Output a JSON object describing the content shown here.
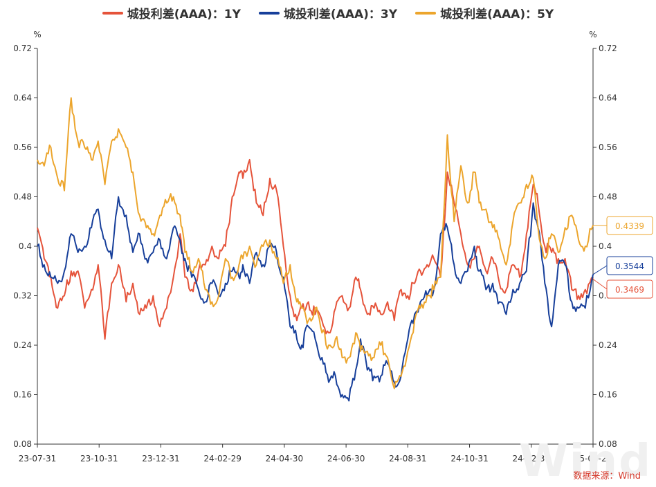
{
  "legend": [
    {
      "name": "城投利差(AAA)：1Y",
      "color": "#e5533a"
    },
    {
      "name": "城投利差(AAA)：3Y",
      "color": "#173f9a"
    },
    {
      "name": "城投利差(AAA)：5Y",
      "color": "#eca52c"
    }
  ],
  "source_label": "数据来源：Wind",
  "watermark": "Wind",
  "chart_data": {
    "type": "line",
    "unit_left": "%",
    "unit_right": "%",
    "ylim": [
      0.08,
      0.72
    ],
    "y_ticks": [
      "0.08",
      "0.16",
      "0.24",
      "0.32",
      "0.4",
      "0.48",
      "0.56",
      "0.64",
      "0.72"
    ],
    "x_ticks": [
      "23-07-31",
      "23-10-31",
      "23-12-31",
      "24-02-29",
      "24-04-30",
      "24-06-30",
      "24-08-31",
      "24-10-31",
      "24-12-31",
      "25-02-26"
    ],
    "x_range": [
      "2023-07-31",
      "2025-02-26"
    ],
    "end_labels": [
      "0.4339",
      "0.3544",
      "0.3469"
    ],
    "series": [
      {
        "name": "城投利差(AAA)：1Y",
        "color": "#e5533a",
        "points": [
          [
            "2023-07-31",
            0.43
          ],
          [
            "2023-08-07",
            0.38
          ],
          [
            "2023-08-14",
            0.35
          ],
          [
            "2023-08-21",
            0.3
          ],
          [
            "2023-08-28",
            0.32
          ],
          [
            "2023-09-04",
            0.36
          ],
          [
            "2023-09-11",
            0.36
          ],
          [
            "2023-09-18",
            0.3
          ],
          [
            "2023-09-25",
            0.33
          ],
          [
            "2023-10-02",
            0.37
          ],
          [
            "2023-10-09",
            0.25
          ],
          [
            "2023-10-16",
            0.34
          ],
          [
            "2023-10-23",
            0.37
          ],
          [
            "2023-10-31",
            0.31
          ],
          [
            "2023-11-07",
            0.34
          ],
          [
            "2023-11-14",
            0.29
          ],
          [
            "2023-11-21",
            0.3
          ],
          [
            "2023-11-28",
            0.32
          ],
          [
            "2023-12-05",
            0.27
          ],
          [
            "2023-12-12",
            0.3
          ],
          [
            "2023-12-19",
            0.35
          ],
          [
            "2023-12-26",
            0.42
          ],
          [
            "2023-12-31",
            0.35
          ],
          [
            "2024-01-07",
            0.33
          ],
          [
            "2024-01-14",
            0.36
          ],
          [
            "2024-01-21",
            0.37
          ],
          [
            "2024-01-28",
            0.4
          ],
          [
            "2024-02-04",
            0.38
          ],
          [
            "2024-02-11",
            0.4
          ],
          [
            "2024-02-18",
            0.48
          ],
          [
            "2024-02-25",
            0.52
          ],
          [
            "2024-02-29",
            0.51
          ],
          [
            "2024-03-07",
            0.54
          ],
          [
            "2024-03-14",
            0.47
          ],
          [
            "2024-03-21",
            0.45
          ],
          [
            "2024-03-28",
            0.51
          ],
          [
            "2024-04-04",
            0.49
          ],
          [
            "2024-04-11",
            0.4
          ],
          [
            "2024-04-18",
            0.32
          ],
          [
            "2024-04-25",
            0.28
          ],
          [
            "2024-04-30",
            0.3
          ],
          [
            "2024-05-07",
            0.31
          ],
          [
            "2024-05-14",
            0.29
          ],
          [
            "2024-05-21",
            0.28
          ],
          [
            "2024-05-28",
            0.26
          ],
          [
            "2024-06-04",
            0.3
          ],
          [
            "2024-06-11",
            0.32
          ],
          [
            "2024-06-18",
            0.3
          ],
          [
            "2024-06-25",
            0.35
          ],
          [
            "2024-06-30",
            0.33
          ],
          [
            "2024-07-07",
            0.29
          ],
          [
            "2024-07-14",
            0.3
          ],
          [
            "2024-07-21",
            0.29
          ],
          [
            "2024-07-28",
            0.31
          ],
          [
            "2024-08-04",
            0.28
          ],
          [
            "2024-08-11",
            0.33
          ],
          [
            "2024-08-18",
            0.32
          ],
          [
            "2024-08-25",
            0.34
          ],
          [
            "2024-08-31",
            0.36
          ],
          [
            "2024-09-07",
            0.37
          ],
          [
            "2024-09-14",
            0.38
          ],
          [
            "2024-09-21",
            0.35
          ],
          [
            "2024-09-28",
            0.52
          ],
          [
            "2024-10-05",
            0.47
          ],
          [
            "2024-10-12",
            0.42
          ],
          [
            "2024-10-19",
            0.37
          ],
          [
            "2024-10-26",
            0.38
          ],
          [
            "2024-10-31",
            0.4
          ],
          [
            "2024-11-07",
            0.36
          ],
          [
            "2024-11-14",
            0.38
          ],
          [
            "2024-11-21",
            0.34
          ],
          [
            "2024-11-28",
            0.33
          ],
          [
            "2024-12-05",
            0.37
          ],
          [
            "2024-12-12",
            0.35
          ],
          [
            "2024-12-19",
            0.42
          ],
          [
            "2024-12-26",
            0.5
          ],
          [
            "2024-12-31",
            0.47
          ],
          [
            "2025-01-07",
            0.4
          ],
          [
            "2025-01-14",
            0.39
          ],
          [
            "2025-01-21",
            0.38
          ],
          [
            "2025-01-28",
            0.38
          ],
          [
            "2025-02-04",
            0.33
          ],
          [
            "2025-02-11",
            0.32
          ],
          [
            "2025-02-18",
            0.33
          ],
          [
            "2025-02-26",
            0.3469
          ]
        ]
      },
      {
        "name": "城投利差(AAA)：3Y",
        "color": "#173f9a",
        "points": [
          [
            "2023-07-31",
            0.4
          ],
          [
            "2023-08-07",
            0.37
          ],
          [
            "2023-08-14",
            0.35
          ],
          [
            "2023-08-21",
            0.34
          ],
          [
            "2023-08-28",
            0.36
          ],
          [
            "2023-09-04",
            0.42
          ],
          [
            "2023-09-11",
            0.39
          ],
          [
            "2023-09-18",
            0.4
          ],
          [
            "2023-09-25",
            0.43
          ],
          [
            "2023-10-02",
            0.46
          ],
          [
            "2023-10-09",
            0.41
          ],
          [
            "2023-10-16",
            0.38
          ],
          [
            "2023-10-23",
            0.48
          ],
          [
            "2023-10-31",
            0.45
          ],
          [
            "2023-11-07",
            0.39
          ],
          [
            "2023-11-14",
            0.42
          ],
          [
            "2023-11-21",
            0.38
          ],
          [
            "2023-11-28",
            0.39
          ],
          [
            "2023-12-05",
            0.41
          ],
          [
            "2023-12-12",
            0.38
          ],
          [
            "2023-12-19",
            0.43
          ],
          [
            "2023-12-26",
            0.41
          ],
          [
            "2023-12-31",
            0.38
          ],
          [
            "2024-01-07",
            0.35
          ],
          [
            "2024-01-14",
            0.33
          ],
          [
            "2024-01-21",
            0.31
          ],
          [
            "2024-01-28",
            0.34
          ],
          [
            "2024-02-04",
            0.32
          ],
          [
            "2024-02-11",
            0.34
          ],
          [
            "2024-02-18",
            0.36
          ],
          [
            "2024-02-25",
            0.35
          ],
          [
            "2024-02-29",
            0.37
          ],
          [
            "2024-03-07",
            0.34
          ],
          [
            "2024-03-14",
            0.39
          ],
          [
            "2024-03-21",
            0.37
          ],
          [
            "2024-03-28",
            0.4
          ],
          [
            "2024-04-04",
            0.39
          ],
          [
            "2024-04-11",
            0.35
          ],
          [
            "2024-04-18",
            0.27
          ],
          [
            "2024-04-25",
            0.25
          ],
          [
            "2024-04-30",
            0.24
          ],
          [
            "2024-05-07",
            0.27
          ],
          [
            "2024-05-14",
            0.25
          ],
          [
            "2024-05-21",
            0.22
          ],
          [
            "2024-05-28",
            0.18
          ],
          [
            "2024-06-04",
            0.19
          ],
          [
            "2024-06-11",
            0.16
          ],
          [
            "2024-06-18",
            0.15
          ],
          [
            "2024-06-25",
            0.2
          ],
          [
            "2024-06-30",
            0.25
          ],
          [
            "2024-07-07",
            0.2
          ],
          [
            "2024-07-14",
            0.19
          ],
          [
            "2024-07-21",
            0.19
          ],
          [
            "2024-07-28",
            0.21
          ],
          [
            "2024-08-04",
            0.18
          ],
          [
            "2024-08-11",
            0.19
          ],
          [
            "2024-08-18",
            0.25
          ],
          [
            "2024-08-25",
            0.29
          ],
          [
            "2024-08-31",
            0.31
          ],
          [
            "2024-09-07",
            0.32
          ],
          [
            "2024-09-14",
            0.33
          ],
          [
            "2024-09-21",
            0.42
          ],
          [
            "2024-09-28",
            0.43
          ],
          [
            "2024-10-05",
            0.37
          ],
          [
            "2024-10-12",
            0.34
          ],
          [
            "2024-10-19",
            0.36
          ],
          [
            "2024-10-26",
            0.4
          ],
          [
            "2024-10-31",
            0.36
          ],
          [
            "2024-11-07",
            0.33
          ],
          [
            "2024-11-14",
            0.34
          ],
          [
            "2024-11-21",
            0.31
          ],
          [
            "2024-11-28",
            0.29
          ],
          [
            "2024-12-05",
            0.33
          ],
          [
            "2024-12-12",
            0.34
          ],
          [
            "2024-12-19",
            0.36
          ],
          [
            "2024-12-26",
            0.47
          ],
          [
            "2024-12-31",
            0.43
          ],
          [
            "2025-01-07",
            0.34
          ],
          [
            "2025-01-14",
            0.27
          ],
          [
            "2025-01-21",
            0.37
          ],
          [
            "2025-01-28",
            0.37
          ],
          [
            "2025-02-04",
            0.31
          ],
          [
            "2025-02-11",
            0.3
          ],
          [
            "2025-02-18",
            0.3
          ],
          [
            "2025-02-26",
            0.3544
          ]
        ]
      },
      {
        "name": "城投利差(AAA)：5Y",
        "color": "#eca52c",
        "points": [
          [
            "2023-07-31",
            0.54
          ],
          [
            "2023-08-07",
            0.53
          ],
          [
            "2023-08-14",
            0.56
          ],
          [
            "2023-08-21",
            0.51
          ],
          [
            "2023-08-28",
            0.49
          ],
          [
            "2023-09-04",
            0.64
          ],
          [
            "2023-09-11",
            0.57
          ],
          [
            "2023-09-18",
            0.56
          ],
          [
            "2023-09-25",
            0.54
          ],
          [
            "2023-10-02",
            0.57
          ],
          [
            "2023-10-09",
            0.5
          ],
          [
            "2023-10-16",
            0.57
          ],
          [
            "2023-10-23",
            0.59
          ],
          [
            "2023-10-31",
            0.56
          ],
          [
            "2023-11-07",
            0.52
          ],
          [
            "2023-11-14",
            0.45
          ],
          [
            "2023-11-21",
            0.43
          ],
          [
            "2023-11-28",
            0.42
          ],
          [
            "2023-12-05",
            0.45
          ],
          [
            "2023-12-12",
            0.47
          ],
          [
            "2023-12-19",
            0.48
          ],
          [
            "2023-12-26",
            0.45
          ],
          [
            "2023-12-31",
            0.39
          ],
          [
            "2024-01-07",
            0.36
          ],
          [
            "2024-01-14",
            0.38
          ],
          [
            "2024-01-21",
            0.33
          ],
          [
            "2024-01-28",
            0.31
          ],
          [
            "2024-02-04",
            0.32
          ],
          [
            "2024-02-11",
            0.38
          ],
          [
            "2024-02-18",
            0.35
          ],
          [
            "2024-02-25",
            0.37
          ],
          [
            "2024-02-29",
            0.38
          ],
          [
            "2024-03-07",
            0.4
          ],
          [
            "2024-03-14",
            0.37
          ],
          [
            "2024-03-21",
            0.4
          ],
          [
            "2024-03-28",
            0.41
          ],
          [
            "2024-04-04",
            0.38
          ],
          [
            "2024-04-11",
            0.34
          ],
          [
            "2024-04-18",
            0.37
          ],
          [
            "2024-04-25",
            0.31
          ],
          [
            "2024-04-30",
            0.3
          ],
          [
            "2024-05-07",
            0.28
          ],
          [
            "2024-05-14",
            0.3
          ],
          [
            "2024-05-21",
            0.26
          ],
          [
            "2024-05-28",
            0.24
          ],
          [
            "2024-06-04",
            0.25
          ],
          [
            "2024-06-11",
            0.22
          ],
          [
            "2024-06-18",
            0.22
          ],
          [
            "2024-06-25",
            0.26
          ],
          [
            "2024-06-30",
            0.23
          ],
          [
            "2024-07-07",
            0.23
          ],
          [
            "2024-07-14",
            0.22
          ],
          [
            "2024-07-21",
            0.24
          ],
          [
            "2024-07-28",
            0.22
          ],
          [
            "2024-08-04",
            0.17
          ],
          [
            "2024-08-11",
            0.19
          ],
          [
            "2024-08-18",
            0.23
          ],
          [
            "2024-08-25",
            0.28
          ],
          [
            "2024-08-31",
            0.3
          ],
          [
            "2024-09-07",
            0.32
          ],
          [
            "2024-09-14",
            0.33
          ],
          [
            "2024-09-21",
            0.35
          ],
          [
            "2024-09-28",
            0.58
          ],
          [
            "2024-10-05",
            0.44
          ],
          [
            "2024-10-12",
            0.53
          ],
          [
            "2024-10-19",
            0.47
          ],
          [
            "2024-10-26",
            0.52
          ],
          [
            "2024-10-31",
            0.47
          ],
          [
            "2024-11-07",
            0.46
          ],
          [
            "2024-11-14",
            0.43
          ],
          [
            "2024-11-21",
            0.41
          ],
          [
            "2024-11-28",
            0.37
          ],
          [
            "2024-12-05",
            0.44
          ],
          [
            "2024-12-12",
            0.47
          ],
          [
            "2024-12-19",
            0.5
          ],
          [
            "2024-12-26",
            0.51
          ],
          [
            "2024-12-31",
            0.43
          ],
          [
            "2025-01-07",
            0.38
          ],
          [
            "2025-01-14",
            0.42
          ],
          [
            "2025-01-21",
            0.39
          ],
          [
            "2025-01-28",
            0.43
          ],
          [
            "2025-02-04",
            0.45
          ],
          [
            "2025-02-11",
            0.41
          ],
          [
            "2025-02-18",
            0.4
          ],
          [
            "2025-02-26",
            0.4339
          ]
        ]
      }
    ]
  }
}
